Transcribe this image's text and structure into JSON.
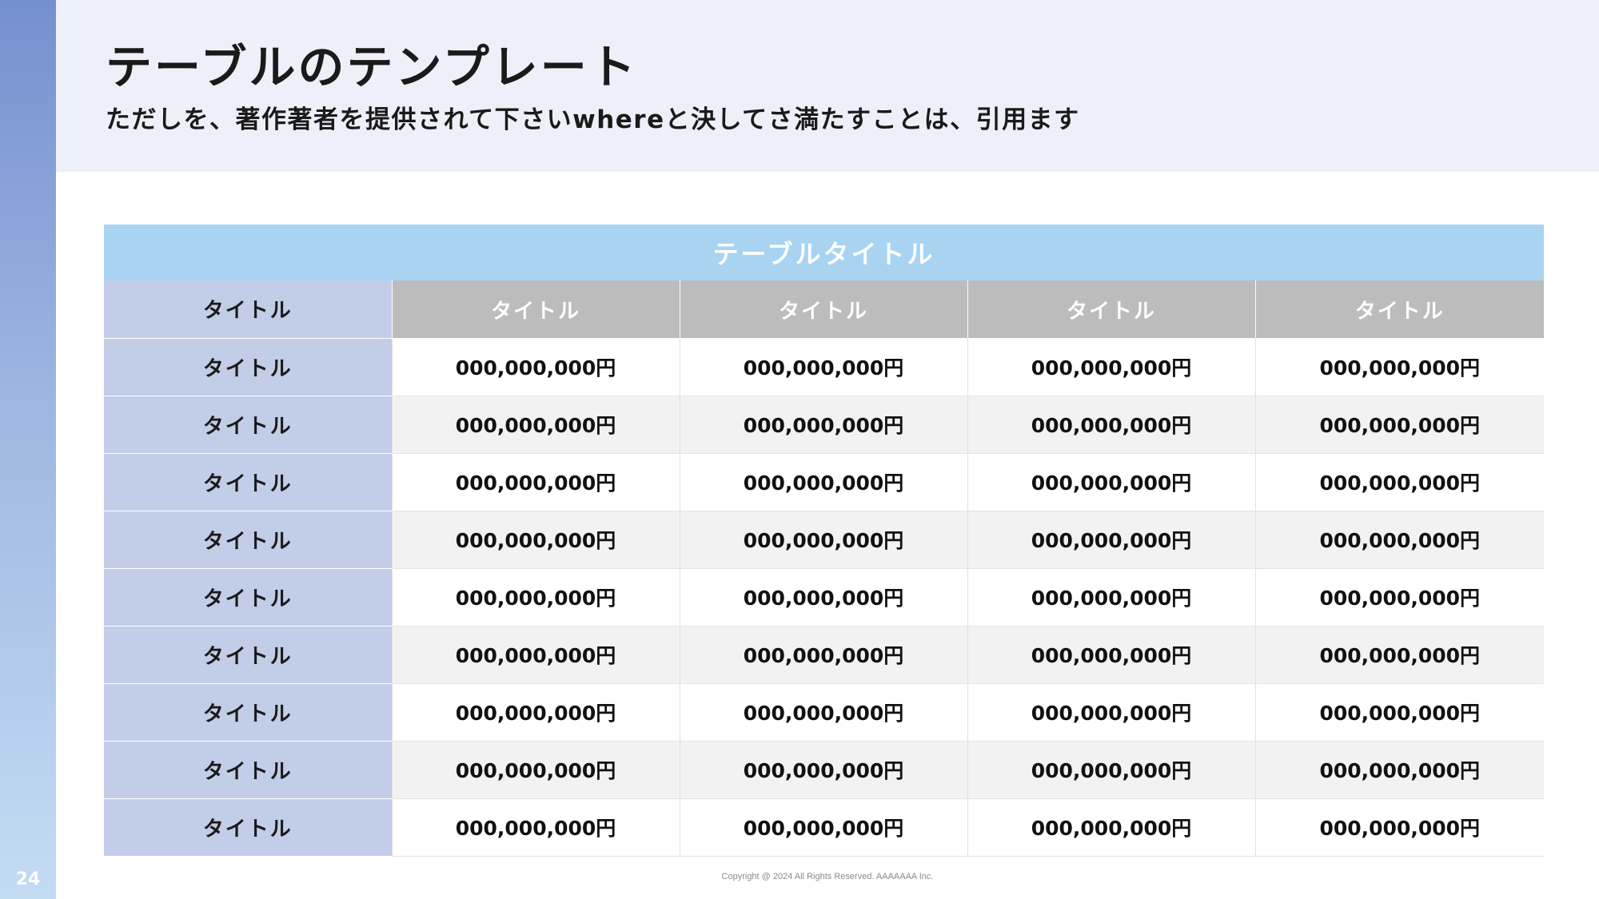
{
  "page": {
    "number": "24",
    "title": "テーブルのテンプレート",
    "subtitle": "ただしを、著作著者を提供されて下さいwhereと決してさ満たすことは、引用ます",
    "copyright": "Copyright @ 2024 All Rights Reserved. AAAAAAA Inc."
  },
  "colors": {
    "sidebar_top": "#7590cf",
    "sidebar_bottom": "#c4dcf2",
    "header_band": "#edf0f8",
    "table_title_bg": "#a8d4f2",
    "row_header_bg": "#c2cde7",
    "column_header_bg": "#bcbcbc",
    "stripe_bg": "#f2f2f2"
  },
  "table": {
    "title": "テーブルタイトル",
    "corner_label": "タイトル",
    "column_headers": [
      "タイトル",
      "タイトル",
      "タイトル",
      "タイトル"
    ],
    "rows": [
      {
        "label": "タイトル",
        "values": [
          "000,000,000円",
          "000,000,000円",
          "000,000,000円",
          "000,000,000円"
        ]
      },
      {
        "label": "タイトル",
        "values": [
          "000,000,000円",
          "000,000,000円",
          "000,000,000円",
          "000,000,000円"
        ]
      },
      {
        "label": "タイトル",
        "values": [
          "000,000,000円",
          "000,000,000円",
          "000,000,000円",
          "000,000,000円"
        ]
      },
      {
        "label": "タイトル",
        "values": [
          "000,000,000円",
          "000,000,000円",
          "000,000,000円",
          "000,000,000円"
        ]
      },
      {
        "label": "タイトル",
        "values": [
          "000,000,000円",
          "000,000,000円",
          "000,000,000円",
          "000,000,000円"
        ]
      },
      {
        "label": "タイトル",
        "values": [
          "000,000,000円",
          "000,000,000円",
          "000,000,000円",
          "000,000,000円"
        ]
      },
      {
        "label": "タイトル",
        "values": [
          "000,000,000円",
          "000,000,000円",
          "000,000,000円",
          "000,000,000円"
        ]
      },
      {
        "label": "タイトル",
        "values": [
          "000,000,000円",
          "000,000,000円",
          "000,000,000円",
          "000,000,000円"
        ]
      },
      {
        "label": "タイトル",
        "values": [
          "000,000,000円",
          "000,000,000円",
          "000,000,000円",
          "000,000,000円"
        ]
      }
    ]
  }
}
